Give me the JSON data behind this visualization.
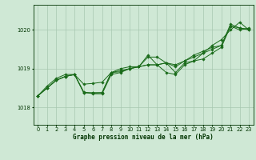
{
  "xlabel": "Graphe pression niveau de la mer (hPa)",
  "background_color": "#cfe8d5",
  "line_color": "#1a6b1a",
  "grid_color": "#a8c8b0",
  "fig_color": "#cfe8d5",
  "xlim": [
    -0.5,
    23.5
  ],
  "ylim": [
    1017.55,
    1020.65
  ],
  "yticks": [
    1018,
    1019,
    1020
  ],
  "xticks": [
    0,
    1,
    2,
    3,
    4,
    5,
    6,
    7,
    8,
    9,
    10,
    11,
    12,
    13,
    14,
    15,
    16,
    17,
    18,
    19,
    20,
    21,
    22,
    23
  ],
  "series": [
    [
      1018.3,
      1018.5,
      1018.7,
      1018.8,
      1018.85,
      1018.6,
      1018.62,
      1018.65,
      1018.9,
      1018.95,
      1019.0,
      1019.05,
      1019.1,
      1019.1,
      1019.15,
      1018.9,
      1019.15,
      1019.2,
      1019.25,
      1019.4,
      1019.55,
      1020.1,
      1020.0,
      1020.05
    ],
    [
      1018.3,
      1018.5,
      1018.7,
      1018.8,
      1018.85,
      1018.4,
      1018.35,
      1018.35,
      1018.85,
      1018.9,
      1019.0,
      1019.05,
      1019.35,
      1019.1,
      1018.9,
      1018.85,
      1019.1,
      1019.2,
      1019.4,
      1019.6,
      1019.75,
      1020.0,
      1020.2,
      1020.0
    ],
    [
      1018.3,
      1018.55,
      1018.75,
      1018.85,
      1018.85,
      1018.38,
      1018.37,
      1018.38,
      1018.9,
      1018.92,
      1019.0,
      1019.05,
      1019.3,
      1019.3,
      1019.15,
      1019.05,
      1019.2,
      1019.35,
      1019.45,
      1019.55,
      1019.6,
      1020.15,
      1020.05,
      1020.0
    ],
    [
      1018.3,
      1018.5,
      1018.7,
      1018.8,
      1018.85,
      1018.38,
      1018.38,
      1018.38,
      1018.9,
      1019.0,
      1019.05,
      1019.05,
      1019.1,
      1019.1,
      1019.15,
      1019.1,
      1019.2,
      1019.3,
      1019.4,
      1019.5,
      1019.6,
      1020.1,
      1020.05,
      1020.02
    ]
  ],
  "marker": "D",
  "markersize": 1.8,
  "linewidth": 0.7,
  "tick_color": "#003300",
  "label_fontsize": 5.5,
  "tick_fontsize": 4.8
}
